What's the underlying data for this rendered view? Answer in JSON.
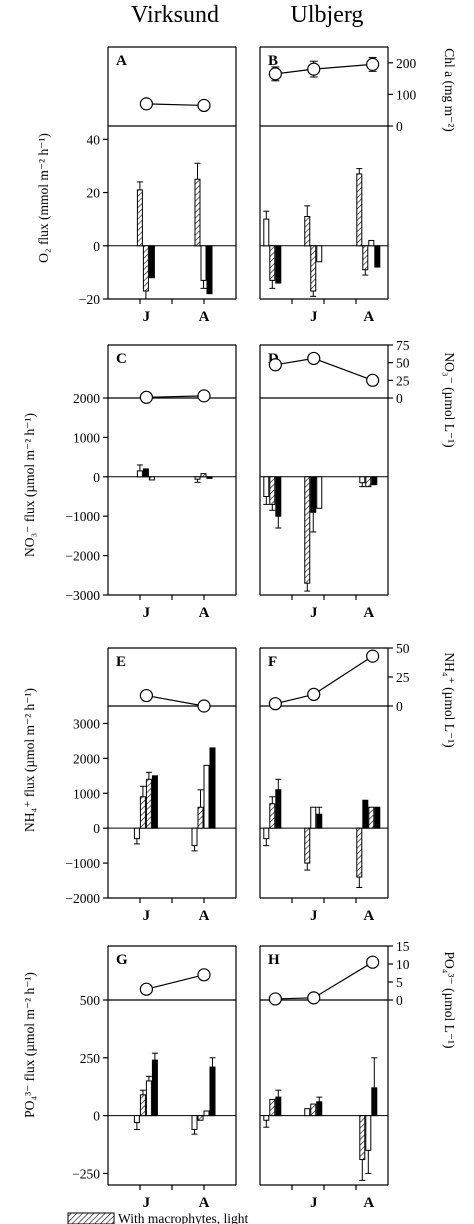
{
  "headers": {
    "left": "Virksund",
    "right": "Ulbjerg"
  },
  "axes": {
    "o2_flux": "O₂ flux (mmol m⁻² h⁻¹)",
    "chl": "Chl a (mg m⁻²)",
    "no3_flux": "NO₃⁻ flux (µmol m⁻² h⁻¹)",
    "no3_conc": "NO₃⁻ (µmol L⁻¹)",
    "nh4_flux": "NH₄⁺ flux (µmol m⁻² h⁻¹)",
    "nh4_conc": "NH₄⁺ (µmol L⁻¹)",
    "po4_flux": "PO₄³⁻ flux (µmol m⁻² h⁻¹)",
    "po4_conc": "PO₄³⁻ (µmol L⁻¹)"
  },
  "legend": {
    "hatched": "With macrophytes, light"
  },
  "chart_data": [
    {
      "type": "bar",
      "rows": [
        {
          "key": "O2",
          "top": {
            "ylim": [
              0,
              250
            ],
            "ticks": [
              0,
              100,
              200
            ]
          },
          "bottom": {
            "ylim": [
              -20,
              45
            ],
            "ticks": [
              -20,
              0,
              20,
              40
            ]
          },
          "panels": [
            {
              "label": "A",
              "site": "Virksund",
              "points": [
                {
                  "x": 0.3,
                  "y": 70,
                  "err": 10
                },
                {
                  "x": 0.75,
                  "y": 65,
                  "err": 10
                }
              ],
              "groups": [
                {
                  "tick": "J",
                  "bars": [
                    {
                      "style": "hatched",
                      "value": 21,
                      "err": 3
                    },
                    {
                      "style": "hatched",
                      "value": -17,
                      "err": 3
                    },
                    {
                      "style": "solid",
                      "value": -12
                    }
                  ]
                },
                {
                  "tick": "A",
                  "bars": [
                    {
                      "style": "hatched",
                      "value": 25,
                      "err": 6
                    },
                    {
                      "style": "open",
                      "value": -13,
                      "err": 3
                    },
                    {
                      "style": "solid",
                      "value": -18
                    }
                  ]
                }
              ]
            },
            {
              "label": "B",
              "site": "Ulbjerg",
              "points": [
                {
                  "x": 0.12,
                  "y": 165,
                  "err": 22
                },
                {
                  "x": 0.42,
                  "y": 180,
                  "err": 25
                },
                {
                  "x": 0.88,
                  "y": 195,
                  "err": 22
                }
              ],
              "groups": [
                {
                  "tick": "",
                  "bars": [
                    {
                      "style": "open",
                      "value": 10,
                      "err": 3
                    },
                    {
                      "style": "hatched",
                      "value": -13,
                      "err": 3
                    },
                    {
                      "style": "solid",
                      "value": -14
                    }
                  ]
                },
                {
                  "tick": "J",
                  "bars": [
                    {
                      "style": "hatched",
                      "value": 11,
                      "err": 4
                    },
                    {
                      "style": "hatched",
                      "value": -17,
                      "err": 2
                    },
                    {
                      "style": "open",
                      "value": -6
                    }
                  ]
                },
                {
                  "tick": "A",
                  "bars": [
                    {
                      "style": "hatched",
                      "value": 27,
                      "err": 2
                    },
                    {
                      "style": "hatched",
                      "value": -9,
                      "err": 2
                    },
                    {
                      "style": "open",
                      "value": 2
                    },
                    {
                      "style": "solid",
                      "value": -8
                    }
                  ]
                }
              ]
            }
          ]
        },
        {
          "key": "NO3",
          "top": {
            "ylim": [
              0,
              75
            ],
            "ticks": [
              0,
              25,
              50,
              75
            ]
          },
          "bottom": {
            "ylim": [
              -3000,
              2000
            ],
            "ticks": [
              -3000,
              -2000,
              -1000,
              0,
              1000,
              2000
            ]
          },
          "panels": [
            {
              "label": "C",
              "site": "Virksund",
              "points": [
                {
                  "x": 0.3,
                  "y": 1
                },
                {
                  "x": 0.75,
                  "y": 3
                }
              ],
              "groups": [
                {
                  "tick": "J",
                  "bars": [
                    {
                      "style": "open",
                      "value": 150,
                      "err": 150
                    },
                    {
                      "style": "solid",
                      "value": 200
                    },
                    {
                      "style": "hatched",
                      "value": -80
                    }
                  ]
                },
                {
                  "tick": "A",
                  "bars": [
                    {
                      "style": "open",
                      "value": -60,
                      "err": 80
                    },
                    {
                      "style": "hatched",
                      "value": 80
                    },
                    {
                      "style": "solid",
                      "value": -40
                    }
                  ]
                }
              ]
            },
            {
              "label": "D",
              "site": "Ulbjerg",
              "points": [
                {
                  "x": 0.12,
                  "y": 47
                },
                {
                  "x": 0.42,
                  "y": 56
                },
                {
                  "x": 0.88,
                  "y": 25
                }
              ],
              "groups": [
                {
                  "tick": "",
                  "bars": [
                    {
                      "style": "open",
                      "value": -500,
                      "err": 200
                    },
                    {
                      "style": "hatched",
                      "value": -700,
                      "err": 150
                    },
                    {
                      "style": "solid",
                      "value": -1000,
                      "err": 300
                    }
                  ]
                },
                {
                  "tick": "J",
                  "bars": [
                    {
                      "style": "hatched",
                      "value": -2700,
                      "err": 200
                    },
                    {
                      "style": "solid",
                      "value": -900,
                      "err": 500
                    },
                    {
                      "style": "open",
                      "value": -800
                    }
                  ]
                },
                {
                  "tick": "A",
                  "bars": [
                    {
                      "style": "open",
                      "value": -150,
                      "err": 100
                    },
                    {
                      "style": "hatched",
                      "value": -250
                    },
                    {
                      "style": "solid",
                      "value": -200
                    }
                  ]
                }
              ]
            }
          ]
        },
        {
          "key": "NH4",
          "top": {
            "ylim": [
              0,
              50
            ],
            "ticks": [
              0,
              25,
              50
            ]
          },
          "bottom": {
            "ylim": [
              -2000,
              3500
            ],
            "ticks": [
              -2000,
              -1000,
              0,
              1000,
              2000,
              3000
            ]
          },
          "panels": [
            {
              "label": "E",
              "site": "Virksund",
              "points": [
                {
                  "x": 0.3,
                  "y": 9
                },
                {
                  "x": 0.75,
                  "y": 0
                }
              ],
              "groups": [
                {
                  "tick": "J",
                  "bars": [
                    {
                      "style": "open",
                      "value": -300,
                      "err": 150
                    },
                    {
                      "style": "hatched",
                      "value": 900,
                      "err": 300
                    },
                    {
                      "style": "hatched",
                      "value": 1400,
                      "err": 200
                    },
                    {
                      "style": "solid",
                      "value": 1500
                    }
                  ]
                },
                {
                  "tick": "A",
                  "bars": [
                    {
                      "style": "open",
                      "value": -500,
                      "err": 150
                    },
                    {
                      "style": "hatched",
                      "value": 600,
                      "err": 500
                    },
                    {
                      "style": "open",
                      "value": 1800
                    },
                    {
                      "style": "solid",
                      "value": 2300
                    }
                  ]
                }
              ]
            },
            {
              "label": "F",
              "site": "Ulbjerg",
              "points": [
                {
                  "x": 0.12,
                  "y": 2
                },
                {
                  "x": 0.42,
                  "y": 10
                },
                {
                  "x": 0.88,
                  "y": 43
                }
              ],
              "groups": [
                {
                  "tick": "",
                  "bars": [
                    {
                      "style": "open",
                      "value": -300,
                      "err": 200
                    },
                    {
                      "style": "hatched",
                      "value": 700,
                      "err": 200
                    },
                    {
                      "style": "solid",
                      "value": 1100,
                      "err": 300
                    }
                  ]
                },
                {
                  "tick": "J",
                  "bars": [
                    {
                      "style": "hatched",
                      "value": -1000,
                      "err": 200
                    },
                    {
                      "style": "open",
                      "value": 600
                    },
                    {
                      "style": "solid",
                      "value": 400,
                      "err": 200
                    }
                  ]
                },
                {
                  "tick": "A",
                  "bars": [
                    {
                      "style": "hatched",
                      "value": -1400,
                      "err": 300
                    },
                    {
                      "style": "solid",
                      "value": 800
                    },
                    {
                      "style": "hatched",
                      "value": 600
                    },
                    {
                      "style": "solid",
                      "value": 600
                    }
                  ]
                }
              ]
            }
          ]
        },
        {
          "key": "PO4",
          "top": {
            "ylim": [
              0,
              15
            ],
            "ticks": [
              0,
              5,
              10,
              15
            ]
          },
          "bottom": {
            "ylim": [
              -300,
              500
            ],
            "ticks": [
              -250,
              0,
              250,
              500
            ]
          },
          "panels": [
            {
              "label": "G",
              "site": "Virksund",
              "points": [
                {
                  "x": 0.3,
                  "y": 3
                },
                {
                  "x": 0.75,
                  "y": 7
                }
              ],
              "groups": [
                {
                  "tick": "J",
                  "bars": [
                    {
                      "style": "open",
                      "value": -30,
                      "err": 30
                    },
                    {
                      "style": "hatched",
                      "value": 90,
                      "err": 20
                    },
                    {
                      "style": "open",
                      "value": 150,
                      "err": 20
                    },
                    {
                      "style": "solid",
                      "value": 240,
                      "err": 30
                    }
                  ]
                },
                {
                  "tick": "A",
                  "bars": [
                    {
                      "style": "open",
                      "value": -60,
                      "err": 20
                    },
                    {
                      "style": "hatched",
                      "value": -20
                    },
                    {
                      "style": "open",
                      "value": 20
                    },
                    {
                      "style": "solid",
                      "value": 210,
                      "err": 40
                    }
                  ]
                }
              ]
            },
            {
              "label": "H",
              "site": "Ulbjerg",
              "points": [
                {
                  "x": 0.12,
                  "y": 0.3
                },
                {
                  "x": 0.42,
                  "y": 0.6
                },
                {
                  "x": 0.88,
                  "y": 10.5
                }
              ],
              "groups": [
                {
                  "tick": "",
                  "bars": [
                    {
                      "style": "open",
                      "value": -20,
                      "err": 30
                    },
                    {
                      "style": "hatched",
                      "value": 70
                    },
                    {
                      "style": "solid",
                      "value": 80,
                      "err": 30
                    }
                  ]
                },
                {
                  "tick": "J",
                  "bars": [
                    {
                      "style": "open",
                      "value": 30
                    },
                    {
                      "style": "hatched",
                      "value": 50
                    },
                    {
                      "style": "solid",
                      "value": 60,
                      "err": 20
                    }
                  ]
                },
                {
                  "tick": "A",
                  "bars": [
                    {
                      "style": "hatched",
                      "value": -190,
                      "err": 90
                    },
                    {
                      "style": "open",
                      "value": -150,
                      "err": 100
                    },
                    {
                      "style": "solid",
                      "value": 120,
                      "err": 130
                    }
                  ]
                }
              ]
            }
          ]
        }
      ]
    }
  ]
}
